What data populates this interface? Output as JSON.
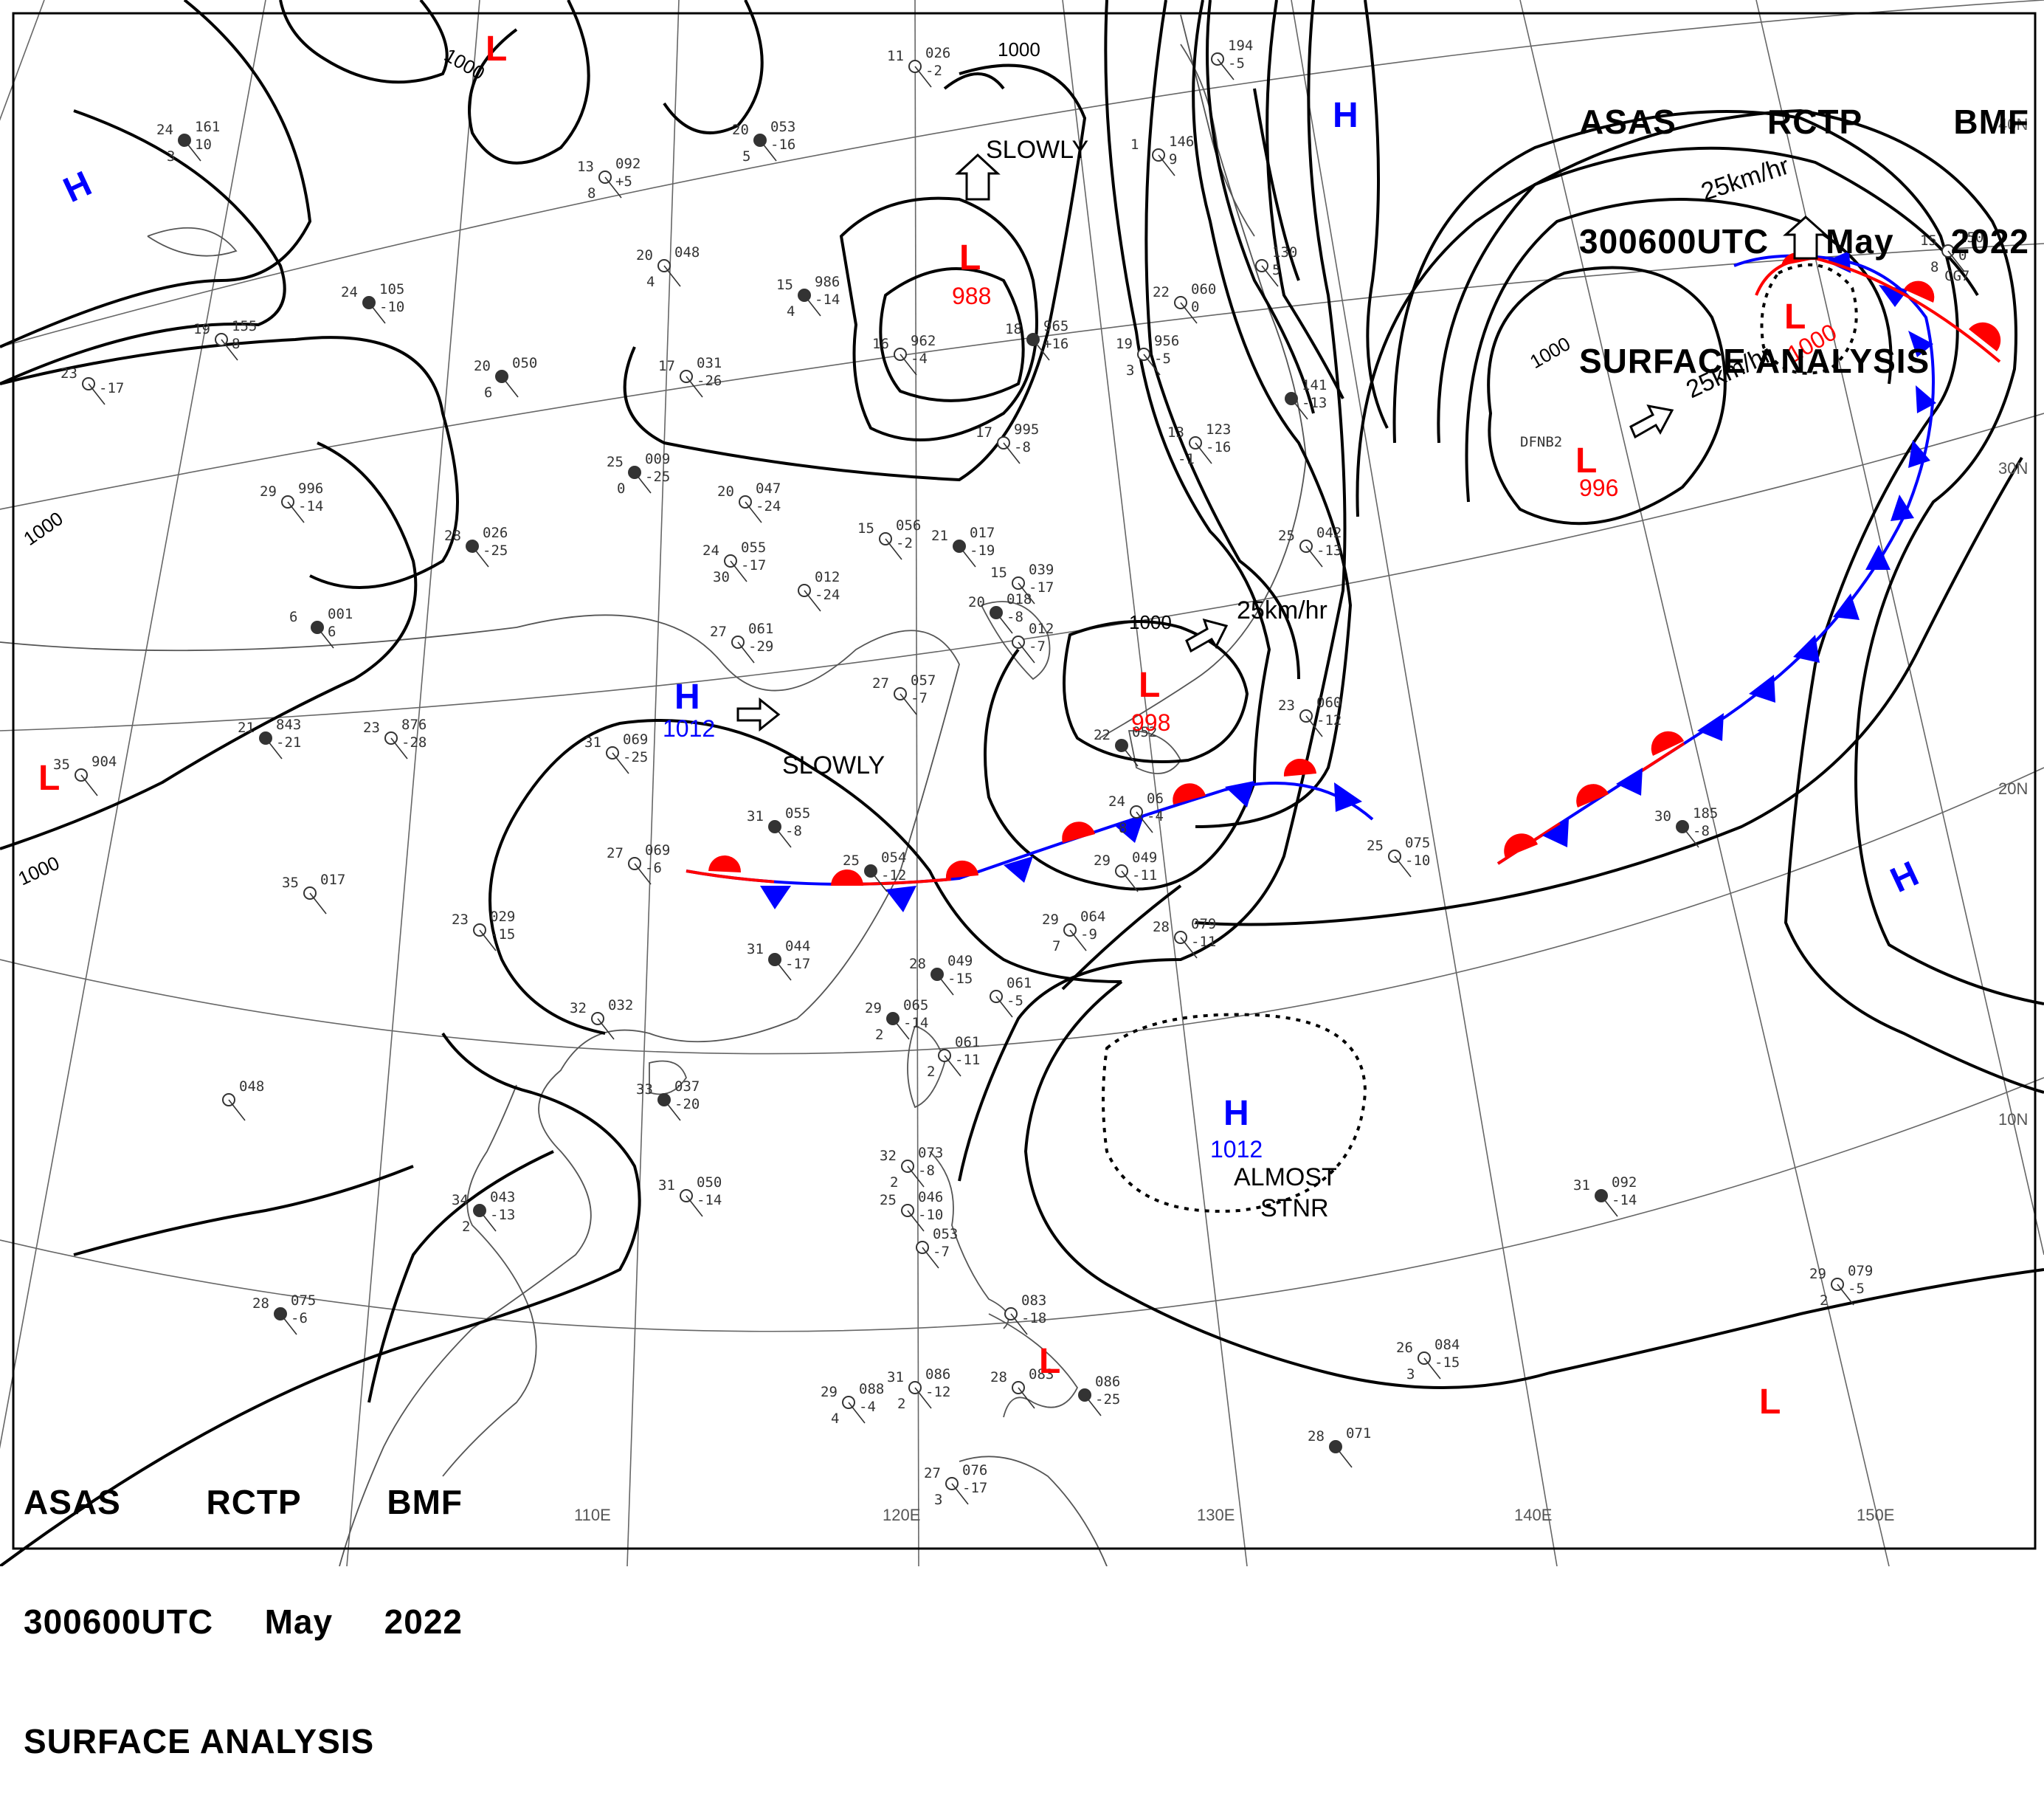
{
  "header_top": {
    "line1": [
      "ASAS",
      "RCTP",
      "BMF"
    ],
    "line2": [
      "300600UTC",
      "May",
      "2022"
    ],
    "line3": "SURFACE ANALYSIS"
  },
  "header_bottom": {
    "line1": [
      "ASAS",
      "RCTP",
      "BMF"
    ],
    "line2": [
      "300600UTC",
      "May",
      "2022"
    ],
    "line3": "SURFACE ANALYSIS"
  },
  "colors": {
    "high": "#0000ff",
    "low": "#ff0000",
    "isobar": "#000000",
    "grid": "#555555"
  },
  "longitudes": [
    "110E",
    "120E",
    "130E",
    "140E",
    "150E"
  ],
  "latitudes": [
    "40N",
    "30N",
    "20N",
    "10N"
  ],
  "isobar_labels": [
    "1000",
    "1000",
    "1000",
    "1000",
    "1000",
    "1000"
  ],
  "pressure_systems": [
    {
      "type": "L",
      "value": ""
    },
    {
      "type": "L",
      "value": "988"
    },
    {
      "type": "L",
      "value": "998"
    },
    {
      "type": "L",
      "value": "996"
    },
    {
      "type": "L",
      "value": "1000"
    },
    {
      "type": "L",
      "value": ""
    },
    {
      "type": "L",
      "value": ""
    },
    {
      "type": "L",
      "value": ""
    },
    {
      "type": "H",
      "value": "1012"
    },
    {
      "type": "H",
      "value": "1012"
    },
    {
      "type": "H",
      "value": ""
    },
    {
      "type": "H",
      "value": ""
    },
    {
      "type": "H",
      "value": ""
    }
  ],
  "movement_notes": [
    "SLOWLY",
    "SLOWLY",
    "25km/hr",
    "25km/hr",
    "25km/hr",
    "ALMOST",
    "STNR"
  ],
  "stations": [
    {
      "a": "24",
      "b": "161",
      "c": "10",
      "d": "3"
    },
    {
      "a": "11",
      "b": "026",
      "c": "-2",
      "d": ""
    },
    {
      "a": "",
      "b": "194",
      "c": "-5",
      "d": ""
    },
    {
      "a": "20",
      "b": "053",
      "c": "-16",
      "d": "5"
    },
    {
      "a": "13",
      "b": "092",
      "c": "+5",
      "d": "8"
    },
    {
      "a": "20",
      "b": "048",
      "c": "",
      "d": "4"
    },
    {
      "a": "15",
      "b": "986",
      "c": "-14",
      "d": "4"
    },
    {
      "a": "1",
      "b": "146",
      "c": "9",
      "d": ""
    },
    {
      "a": "",
      "b": "130",
      "c": "5",
      "d": ""
    },
    {
      "a": "24",
      "b": "105",
      "c": "-10",
      "d": ""
    },
    {
      "a": "19",
      "b": "155",
      "c": "8",
      "d": ""
    },
    {
      "a": "23",
      "b": "",
      "c": "-17",
      "d": ""
    },
    {
      "a": "20",
      "b": "050",
      "c": "",
      "d": "6"
    },
    {
      "a": "17",
      "b": "031",
      "c": "-26",
      "d": ""
    },
    {
      "a": "16",
      "b": "962",
      "c": "-4",
      "d": ""
    },
    {
      "a": "18",
      "b": "965",
      "c": "+16",
      "d": ""
    },
    {
      "a": "22",
      "b": "060",
      "c": "0",
      "d": ""
    },
    {
      "a": "19",
      "b": "956",
      "c": "-5",
      "d": "3"
    },
    {
      "a": "",
      "b": "141",
      "c": "-13",
      "d": ""
    },
    {
      "a": "13",
      "b": "123",
      "c": "-16",
      "d": "-1"
    },
    {
      "a": "17",
      "b": "995",
      "c": "-8",
      "d": ""
    },
    {
      "a": "25",
      "b": "009",
      "c": "-25",
      "d": "0"
    },
    {
      "a": "29",
      "b": "996",
      "c": "-14",
      "d": ""
    },
    {
      "a": "20",
      "b": "047",
      "c": "-24",
      "d": ""
    },
    {
      "a": "28",
      "b": "026",
      "c": "-25",
      "d": ""
    },
    {
      "a": "24",
      "b": "055",
      "c": "-17",
      "d": "30"
    },
    {
      "a": "15",
      "b": "056",
      "c": "-2",
      "d": ""
    },
    {
      "a": "21",
      "b": "017",
      "c": "-19",
      "d": ""
    },
    {
      "a": "",
      "b": "012",
      "c": "-24",
      "d": ""
    },
    {
      "a": "15",
      "b": "039",
      "c": "-17",
      "d": ""
    },
    {
      "a": "20",
      "b": "018",
      "c": "-8",
      "d": ""
    },
    {
      "a": "",
      "b": "012",
      "c": "-7",
      "d": ""
    },
    {
      "a": "25",
      "b": "042",
      "c": "-13",
      "d": ""
    },
    {
      "a": "6",
      "b": "001",
      "c": "6",
      "d": ""
    },
    {
      "a": "27",
      "b": "061",
      "c": "-29",
      "d": ""
    },
    {
      "a": "27",
      "b": "057",
      "c": "-7",
      "d": ""
    },
    {
      "a": "21",
      "b": "843",
      "c": "-21",
      "d": ""
    },
    {
      "a": "23",
      "b": "876",
      "c": "-28",
      "d": ""
    },
    {
      "a": "31",
      "b": "069",
      "c": "-25",
      "d": ""
    },
    {
      "a": "22",
      "b": "052",
      "c": "",
      "d": ""
    },
    {
      "a": "23",
      "b": "060",
      "c": "-12",
      "d": ""
    },
    {
      "a": "35",
      "b": "904",
      "c": "",
      "d": ""
    },
    {
      "a": "31",
      "b": "055",
      "c": "-8",
      "d": ""
    },
    {
      "a": "24",
      "b": "06",
      "c": "-4",
      "d": "8"
    },
    {
      "a": "27",
      "b": "069",
      "c": "-6",
      "d": ""
    },
    {
      "a": "25",
      "b": "054",
      "c": "-12",
      "d": ""
    },
    {
      "a": "29",
      "b": "049",
      "c": "-11",
      "d": ""
    },
    {
      "a": "25",
      "b": "075",
      "c": "-10",
      "d": ""
    },
    {
      "a": "30",
      "b": "185",
      "c": "-8",
      "d": ""
    },
    {
      "a": "35",
      "b": "017",
      "c": "",
      "d": ""
    },
    {
      "a": "23",
      "b": "029",
      "c": "-15",
      "d": ""
    },
    {
      "a": "31",
      "b": "044",
      "c": "-17",
      "d": ""
    },
    {
      "a": "29",
      "b": "064",
      "c": "-9",
      "d": "7"
    },
    {
      "a": "28",
      "b": "079",
      "c": "-11",
      "d": ""
    },
    {
      "a": "28",
      "b": "049",
      "c": "-15",
      "d": ""
    },
    {
      "a": "",
      "b": "061",
      "c": "-5",
      "d": ""
    },
    {
      "a": "32",
      "b": "032",
      "c": "",
      "d": ""
    },
    {
      "a": "29",
      "b": "065",
      "c": "-14",
      "d": "2"
    },
    {
      "a": "",
      "b": "061",
      "c": "-11",
      "d": "2"
    },
    {
      "a": "",
      "b": "048",
      "c": "",
      "d": ""
    },
    {
      "a": "33",
      "b": "037",
      "c": "-20",
      "d": ""
    },
    {
      "a": "32",
      "b": "073",
      "c": "-8",
      "d": "2"
    },
    {
      "a": "31",
      "b": "050",
      "c": "-14",
      "d": ""
    },
    {
      "a": "34",
      "b": "043",
      "c": "-13",
      "d": "2"
    },
    {
      "a": "25",
      "b": "046",
      "c": "-10",
      "d": ""
    },
    {
      "a": "",
      "b": "053",
      "c": "-7",
      "d": ""
    },
    {
      "a": "31",
      "b": "092",
      "c": "-14",
      "d": ""
    },
    {
      "a": "29",
      "b": "079",
      "c": "-5",
      "d": "2"
    },
    {
      "a": "",
      "b": "083",
      "c": "-18",
      "d": ""
    },
    {
      "a": "28",
      "b": "075",
      "c": "-6",
      "d": ""
    },
    {
      "a": "31",
      "b": "086",
      "c": "-12",
      "d": "2"
    },
    {
      "a": "28",
      "b": "083",
      "c": "",
      "d": ""
    },
    {
      "a": "",
      "b": "086",
      "c": "-25",
      "d": ""
    },
    {
      "a": "26",
      "b": "084",
      "c": "-15",
      "d": "3"
    },
    {
      "a": "29",
      "b": "088",
      "c": "-4",
      "d": "4"
    },
    {
      "a": "28",
      "b": "071",
      "c": "",
      "d": ""
    },
    {
      "a": "27",
      "b": "076",
      "c": "-17",
      "d": "3"
    },
    {
      "a": "15",
      "b": "150",
      "c": "0",
      "d": "8"
    }
  ],
  "station_codes": [
    "DFNB2",
    "CG7"
  ]
}
